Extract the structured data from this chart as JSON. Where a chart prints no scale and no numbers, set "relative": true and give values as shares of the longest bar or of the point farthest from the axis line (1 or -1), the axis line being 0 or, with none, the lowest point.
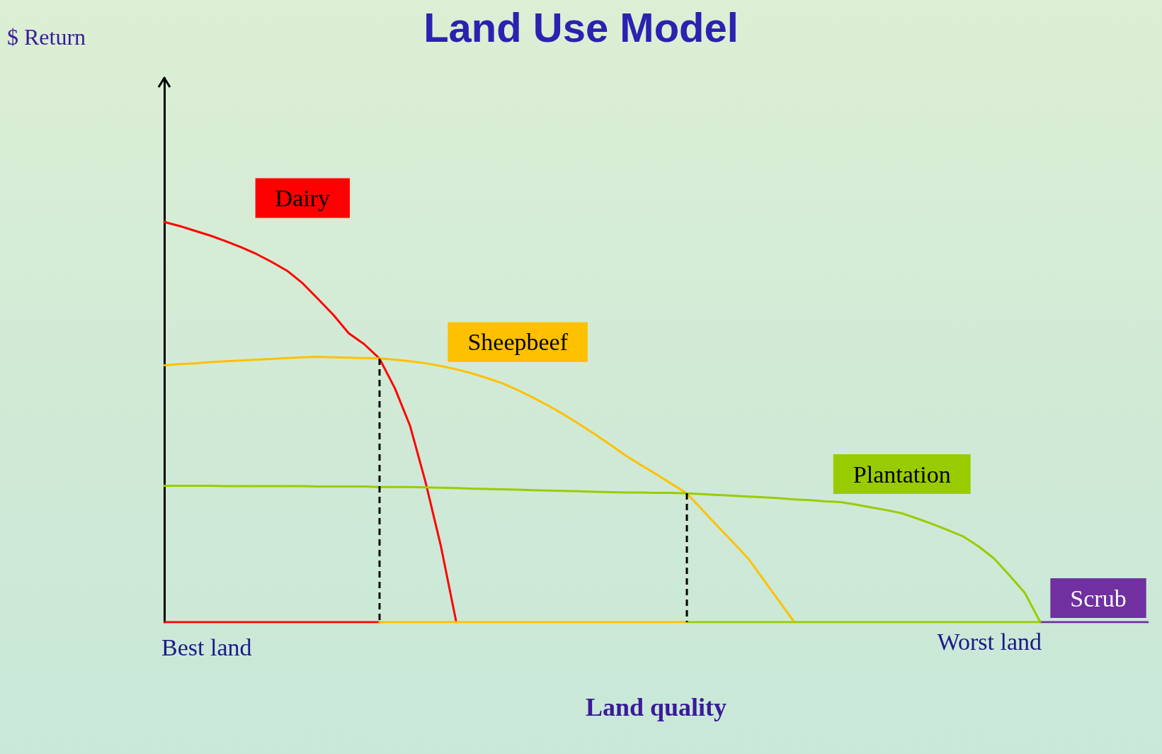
{
  "chart_data": {
    "type": "line",
    "title": "Land Use Model",
    "xlabel": "Land quality",
    "relative": true,
    "grid": false,
    "legend": false,
    "marker": "none",
    "annotations": [
      "Best land",
      "Worst land",
      "$ Return"
    ],
    "categories": [
      null,
      null,
      null,
      null,
      null,
      null,
      null,
      null,
      null,
      null,
      null,
      null,
      null,
      null,
      null,
      null,
      null,
      null,
      null,
      null,
      null,
      null,
      null,
      null,
      null,
      null,
      null,
      null,
      null,
      null,
      null,
      null,
      null,
      null,
      null,
      null,
      null,
      null,
      null,
      null,
      null,
      null,
      null,
      null,
      null,
      null,
      null,
      null,
      null,
      null,
      null,
      null,
      null,
      null,
      null,
      null,
      null,
      null,
      null,
      null,
      null,
      null,
      null,
      null,
      null
    ],
    "series": [
      {
        "name": "Dairy",
        "color": "#ff0000",
        "values": [
          1.0,
          0.99,
          0.978,
          0.966,
          0.952,
          0.937,
          0.92,
          0.9,
          0.878,
          0.847,
          0.808,
          0.768,
          0.722,
          0.695,
          0.659,
          0.585,
          0.49,
          0.35,
          0.19,
          0,
          null,
          null,
          null,
          null,
          null,
          null,
          null,
          null,
          null,
          null,
          null,
          null,
          null,
          null,
          null,
          null,
          null,
          null,
          null,
          null,
          null,
          null,
          null,
          null,
          null,
          null,
          null,
          null,
          null,
          null,
          null,
          null,
          null,
          null,
          null,
          null,
          null,
          null,
          null,
          null,
          null,
          null,
          null,
          null,
          null
        ]
      },
      {
        "name": "Sheepbeef",
        "color": "#ffc000",
        "values": [
          0.642,
          0.645,
          0.647,
          0.65,
          0.652,
          0.654,
          0.656,
          0.658,
          0.66,
          0.662,
          0.663,
          0.662,
          0.661,
          0.66,
          0.659,
          0.656,
          0.652,
          0.647,
          0.64,
          0.632,
          0.622,
          0.61,
          0.597,
          0.58,
          0.561,
          0.541,
          0.519,
          0.495,
          0.47,
          0.444,
          0.417,
          0.393,
          0.37,
          0.346,
          0.322,
          0.281,
          0.24,
          0.2,
          0.159,
          0.106,
          0.053,
          0,
          null,
          null,
          null,
          null,
          null,
          null,
          null,
          null,
          null,
          null,
          null,
          null,
          null,
          null,
          null,
          null,
          null,
          null,
          null,
          null,
          null,
          null,
          null
        ]
      },
      {
        "name": "Plantation",
        "color": "#99cc00",
        "values": [
          0.341,
          0.341,
          0.341,
          0.341,
          0.34,
          0.34,
          0.34,
          0.34,
          0.34,
          0.34,
          0.339,
          0.339,
          0.339,
          0.339,
          0.338,
          0.338,
          0.338,
          0.337,
          0.336,
          0.335,
          0.334,
          0.333,
          0.332,
          0.331,
          0.33,
          0.329,
          0.328,
          0.327,
          0.326,
          0.325,
          0.324,
          0.324,
          0.323,
          0.323,
          0.322,
          0.32,
          0.318,
          0.316,
          0.314,
          0.312,
          0.31,
          0.307,
          0.305,
          0.302,
          0.3,
          0.294,
          0.287,
          0.28,
          0.272,
          0.259,
          0.245,
          0.23,
          0.214,
          0.189,
          0.159,
          0.117,
          0.073,
          0,
          null,
          null,
          null,
          null,
          null,
          null,
          null
        ]
      },
      {
        "name": "Scrub",
        "color": "#7030a0",
        "values": [
          null,
          null,
          null,
          null,
          null,
          null,
          null,
          null,
          null,
          null,
          null,
          null,
          null,
          null,
          null,
          null,
          null,
          null,
          null,
          null,
          null,
          null,
          null,
          null,
          null,
          null,
          null,
          null,
          null,
          null,
          null,
          null,
          null,
          null,
          null,
          null,
          null,
          null,
          null,
          null,
          null,
          null,
          null,
          null,
          null,
          null,
          null,
          null,
          null,
          null,
          null,
          null,
          null,
          null,
          null,
          null,
          null,
          0,
          0,
          0,
          0,
          0,
          0,
          0,
          0
        ]
      },
      {
        "color": "#ff0000",
        "values": [
          0,
          0,
          0,
          0,
          0,
          0,
          0,
          0,
          0,
          0,
          0,
          0,
          0,
          0,
          0,
          null,
          null,
          null,
          null,
          null,
          null,
          null,
          null,
          null,
          null,
          null,
          null,
          null,
          null,
          null,
          null,
          null,
          null,
          null,
          null,
          null,
          null,
          null,
          null,
          null,
          null,
          null,
          null,
          null,
          null,
          null,
          null,
          null,
          null,
          null,
          null,
          null,
          null,
          null,
          null,
          null,
          null,
          null,
          null,
          null,
          null,
          null,
          null,
          null,
          null
        ]
      },
      {
        "color": "#ffc000",
        "values": [
          null,
          null,
          null,
          null,
          null,
          null,
          null,
          null,
          null,
          null,
          null,
          null,
          null,
          null,
          0,
          0,
          0,
          0,
          0,
          0,
          0,
          0,
          0,
          0,
          0,
          0,
          0,
          0,
          0,
          0,
          0,
          0,
          0,
          0,
          0,
          null,
          null,
          null,
          null,
          null,
          null,
          null,
          null,
          null,
          null,
          null,
          null,
          null,
          null,
          null,
          null,
          null,
          null,
          null,
          null,
          null,
          null,
          null,
          null,
          null,
          null,
          null,
          null,
          null,
          null
        ]
      },
      {
        "color": "#99cc00",
        "values": [
          null,
          null,
          null,
          null,
          null,
          null,
          null,
          null,
          null,
          null,
          null,
          null,
          null,
          null,
          null,
          null,
          null,
          null,
          null,
          null,
          null,
          null,
          null,
          null,
          null,
          null,
          null,
          null,
          null,
          null,
          null,
          null,
          null,
          null,
          0,
          0,
          0,
          0,
          0,
          0,
          0,
          0,
          0,
          0,
          0,
          0,
          0,
          0,
          0,
          0,
          0,
          0,
          0,
          0,
          0,
          0,
          0,
          0,
          null,
          null,
          null,
          null,
          null,
          null,
          null
        ]
      }
    ]
  }
}
